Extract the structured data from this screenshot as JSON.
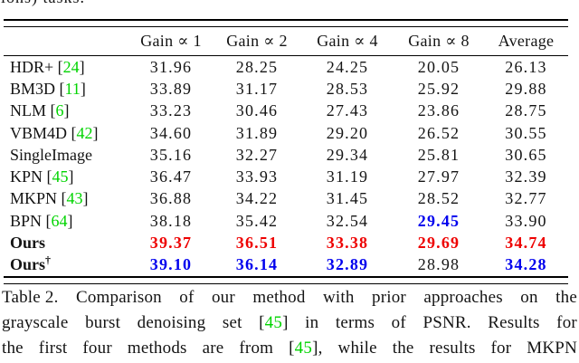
{
  "page": {
    "top_fragment": "ions) tasks."
  },
  "colors": {
    "text": "#141414",
    "citation_green": "#00d400",
    "best_red": "#ee0000",
    "second_blue": "#0000ee"
  },
  "table": {
    "columns": [
      "",
      "Gain ∝ 1",
      "Gain ∝ 2",
      "Gain ∝ 4",
      "Gain ∝ 8",
      "Average"
    ],
    "rows": [
      {
        "method": "HDR+",
        "ref": "24",
        "bold": false,
        "dagger": false,
        "values": [
          {
            "v": "31.96",
            "c": "text"
          },
          {
            "v": "28.25",
            "c": "text"
          },
          {
            "v": "24.25",
            "c": "text"
          },
          {
            "v": "20.05",
            "c": "text"
          },
          {
            "v": "26.13",
            "c": "text"
          }
        ]
      },
      {
        "method": "BM3D",
        "ref": "11",
        "bold": false,
        "dagger": false,
        "values": [
          {
            "v": "33.89",
            "c": "text"
          },
          {
            "v": "31.17",
            "c": "text"
          },
          {
            "v": "28.53",
            "c": "text"
          },
          {
            "v": "25.92",
            "c": "text"
          },
          {
            "v": "29.88",
            "c": "text"
          }
        ]
      },
      {
        "method": "NLM",
        "ref": "6",
        "bold": false,
        "dagger": false,
        "values": [
          {
            "v": "33.23",
            "c": "text"
          },
          {
            "v": "30.46",
            "c": "text"
          },
          {
            "v": "27.43",
            "c": "text"
          },
          {
            "v": "23.86",
            "c": "text"
          },
          {
            "v": "28.75",
            "c": "text"
          }
        ]
      },
      {
        "method": "VBM4D",
        "ref": "42",
        "bold": false,
        "dagger": false,
        "values": [
          {
            "v": "34.60",
            "c": "text"
          },
          {
            "v": "31.89",
            "c": "text"
          },
          {
            "v": "29.20",
            "c": "text"
          },
          {
            "v": "26.52",
            "c": "text"
          },
          {
            "v": "30.55",
            "c": "text"
          }
        ]
      },
      {
        "method": "SingleImage",
        "ref": null,
        "bold": false,
        "dagger": false,
        "values": [
          {
            "v": "35.16",
            "c": "text"
          },
          {
            "v": "32.27",
            "c": "text"
          },
          {
            "v": "29.34",
            "c": "text"
          },
          {
            "v": "25.81",
            "c": "text"
          },
          {
            "v": "30.65",
            "c": "text"
          }
        ]
      },
      {
        "method": "KPN",
        "ref": "45",
        "bold": false,
        "dagger": false,
        "values": [
          {
            "v": "36.47",
            "c": "text"
          },
          {
            "v": "33.93",
            "c": "text"
          },
          {
            "v": "31.19",
            "c": "text"
          },
          {
            "v": "27.97",
            "c": "text"
          },
          {
            "v": "32.39",
            "c": "text"
          }
        ]
      },
      {
        "method": "MKPN",
        "ref": "43",
        "bold": false,
        "dagger": false,
        "values": [
          {
            "v": "36.88",
            "c": "text"
          },
          {
            "v": "34.22",
            "c": "text"
          },
          {
            "v": "31.45",
            "c": "text"
          },
          {
            "v": "28.52",
            "c": "text"
          },
          {
            "v": "32.77",
            "c": "text"
          }
        ]
      },
      {
        "method": "BPN",
        "ref": "64",
        "bold": false,
        "dagger": false,
        "values": [
          {
            "v": "38.18",
            "c": "text"
          },
          {
            "v": "35.42",
            "c": "text"
          },
          {
            "v": "32.54",
            "c": "text"
          },
          {
            "v": "29.45",
            "c": "second_blue"
          },
          {
            "v": "33.90",
            "c": "text"
          }
        ]
      },
      {
        "method": "Ours",
        "ref": null,
        "bold": true,
        "dagger": false,
        "values": [
          {
            "v": "39.37",
            "c": "best_red"
          },
          {
            "v": "36.51",
            "c": "best_red"
          },
          {
            "v": "33.38",
            "c": "best_red"
          },
          {
            "v": "29.69",
            "c": "best_red"
          },
          {
            "v": "34.74",
            "c": "best_red"
          }
        ]
      },
      {
        "method": "Ours",
        "ref": null,
        "bold": true,
        "dagger": true,
        "values": [
          {
            "v": "39.10",
            "c": "second_blue"
          },
          {
            "v": "36.14",
            "c": "second_blue"
          },
          {
            "v": "32.89",
            "c": "second_blue"
          },
          {
            "v": "28.98",
            "c": "text"
          },
          {
            "v": "34.28",
            "c": "second_blue"
          }
        ]
      }
    ]
  },
  "caption": {
    "lines": [
      [
        {
          "t": "Table 2.",
          "c": "text"
        },
        {
          "t": "Comparison",
          "c": "text"
        },
        {
          "t": "of",
          "c": "text"
        },
        {
          "t": "our",
          "c": "text"
        },
        {
          "t": "method",
          "c": "text"
        },
        {
          "t": "with",
          "c": "text"
        },
        {
          "t": "prior",
          "c": "text"
        },
        {
          "t": "approaches",
          "c": "text"
        },
        {
          "t": "on",
          "c": "text"
        },
        {
          "t": "the",
          "c": "text"
        }
      ],
      [
        {
          "t": "grayscale",
          "c": "text"
        },
        {
          "t": "burst",
          "c": "text"
        },
        {
          "t": "denoising",
          "c": "text"
        },
        {
          "t": "set",
          "c": "text"
        },
        {
          "t": "[",
          "c": "text",
          "join": "45",
          "jc": "citation_green",
          "tail": "]"
        },
        {
          "t": "in",
          "c": "text"
        },
        {
          "t": "terms",
          "c": "text"
        },
        {
          "t": "of",
          "c": "text"
        },
        {
          "t": "PSNR.",
          "c": "text"
        },
        {
          "t": "Results",
          "c": "text"
        },
        {
          "t": "for",
          "c": "text"
        }
      ],
      [
        {
          "t": "the",
          "c": "text"
        },
        {
          "t": "first",
          "c": "text"
        },
        {
          "t": "four",
          "c": "text"
        },
        {
          "t": "methods",
          "c": "text"
        },
        {
          "t": "are",
          "c": "text"
        },
        {
          "t": "from",
          "c": "text"
        },
        {
          "t": "[",
          "c": "text",
          "join": "45",
          "jc": "citation_green",
          "tail": "],"
        },
        {
          "t": "while",
          "c": "text"
        },
        {
          "t": "the",
          "c": "text"
        },
        {
          "t": "results",
          "c": "text"
        },
        {
          "t": "for",
          "c": "text"
        },
        {
          "t": "MKPN",
          "c": "text"
        }
      ]
    ]
  }
}
